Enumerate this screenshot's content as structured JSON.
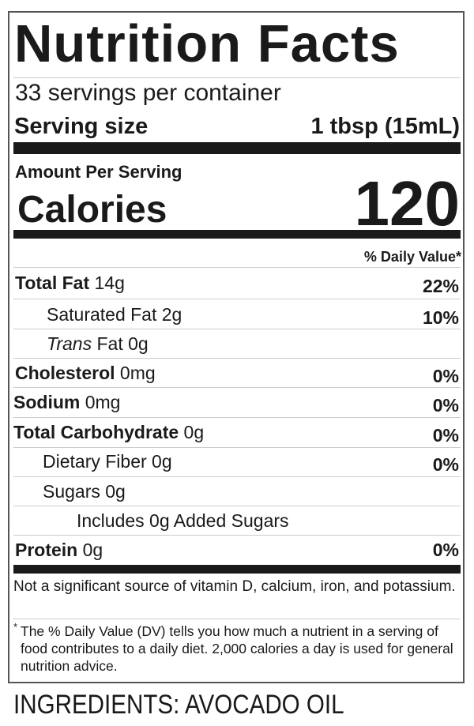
{
  "title": "Nutrition Facts",
  "servings_per_container": "33 servings per container",
  "serving_size": {
    "label": "Serving size",
    "value": "1 tbsp (15mL)"
  },
  "amount_per_serving": "Amount Per Serving",
  "calories": {
    "label": "Calories",
    "value": "120"
  },
  "daily_value_header": "% Daily Value*",
  "nutrients": [
    {
      "name": "Total Fat",
      "amount": "14g",
      "dv": "22%"
    },
    {
      "name": "Saturated Fat",
      "amount": "2g",
      "dv": "10%"
    },
    {
      "name": "Trans",
      "name_suffix": "Fat",
      "amount": "0g",
      "dv": ""
    },
    {
      "name": "Cholesterol",
      "amount": "0mg",
      "dv": "0%"
    },
    {
      "name": "Sodium",
      "amount": "0mg",
      "dv": "0%"
    },
    {
      "name": "Total Carbohydrate",
      "amount": "0g",
      "dv": "0%"
    },
    {
      "name": "Dietary Fiber",
      "amount": "0g",
      "dv": "0%"
    },
    {
      "name": "Sugars",
      "amount": "0g",
      "dv": ""
    },
    {
      "name": "Includes 0g Added Sugars",
      "amount": "",
      "dv": ""
    },
    {
      "name": "Protein",
      "amount": "0g",
      "dv": "0%"
    }
  ],
  "not_significant": "Not a significant source of vitamin D, calcium, iron, and potassium.",
  "footnote_mark": "*",
  "footnote": "The % Daily Value (DV) tells you how much a nutrient in a serving of food contributes to a daily diet. 2,000 calories a day is used for general nutrition advice.",
  "ingredients": "INGREDIENTS: AVOCADO OIL"
}
